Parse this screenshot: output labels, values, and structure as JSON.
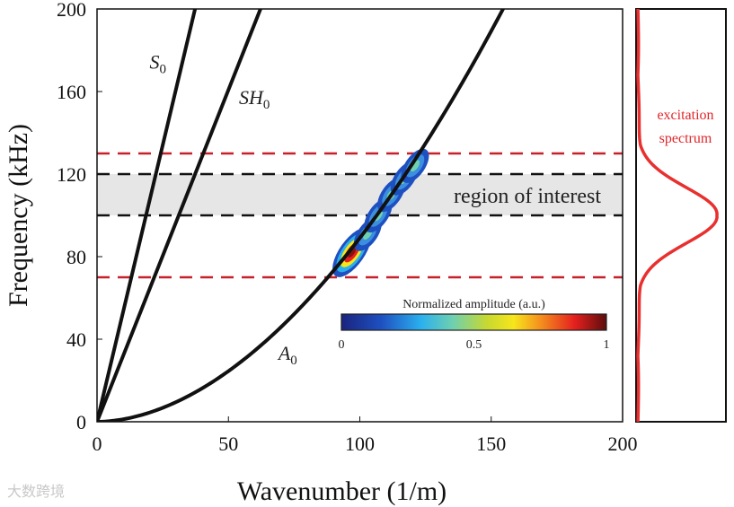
{
  "chart_data": {
    "type": "line",
    "xlabel": "Wavenumber (1/m)",
    "ylabel": "Frequency (kHz)",
    "xlim": [
      0,
      200
    ],
    "ylim": [
      0,
      200
    ],
    "xticks": [
      0,
      50,
      100,
      150,
      200
    ],
    "yticks": [
      0,
      40,
      80,
      120,
      160,
      200
    ],
    "series": [
      {
        "name": "S0",
        "label_main": "S",
        "label_sub": "0",
        "label_at": [
          20,
          171
        ],
        "x": [
          0,
          37.3
        ],
        "y": [
          0,
          200
        ]
      },
      {
        "name": "SH0",
        "label_main": "SH",
        "label_sub": "0",
        "label_at": [
          54,
          154
        ],
        "x": [
          0,
          62.2
        ],
        "y": [
          0,
          200
        ]
      },
      {
        "name": "A0",
        "label_main": "A",
        "label_sub": "0",
        "label_at": [
          69,
          30
        ],
        "x": [
          0,
          10,
          20,
          30,
          40,
          50,
          60,
          70,
          80,
          88,
          100,
          110,
          120,
          130,
          140,
          154.5
        ],
        "y": [
          0,
          1.0,
          4.0,
          8.5,
          14.5,
          22,
          30.5,
          40.5,
          51.5,
          70,
          85,
          100,
          118,
          135,
          160,
          200
        ]
      }
    ],
    "hlines": [
      {
        "y": 70,
        "color": "#c8202a",
        "style": "dashed"
      },
      {
        "y": 130,
        "color": "#c8202a",
        "style": "dashed"
      },
      {
        "y": 100,
        "color": "#111111",
        "style": "dashed"
      },
      {
        "y": 120,
        "color": "#111111",
        "style": "dashed"
      }
    ],
    "region": {
      "y": [
        100,
        120
      ],
      "label": "region of interest",
      "color": "#e6e6e6"
    },
    "amplitude_blobs": [
      {
        "k": 97,
        "f": 82,
        "amp": 1.0
      },
      {
        "k": 103,
        "f": 91,
        "amp": 0.45
      },
      {
        "k": 107,
        "f": 100,
        "amp": 0.3
      },
      {
        "k": 112,
        "f": 110,
        "amp": 0.45
      },
      {
        "k": 117,
        "f": 118,
        "amp": 0.3
      },
      {
        "k": 121,
        "f": 124,
        "amp": 0.3
      }
    ],
    "colorbar": {
      "title": "Normalized amplitude (a.u.)",
      "ticks": [
        "0",
        "0.5",
        "1"
      ],
      "range": [
        0,
        1
      ]
    },
    "excitation": {
      "label_line1": "excitation",
      "label_line2": "spectrum",
      "center_khz": 100,
      "sigma_khz": 13,
      "color": "#e8302f"
    }
  },
  "watermark": "大数跨境"
}
